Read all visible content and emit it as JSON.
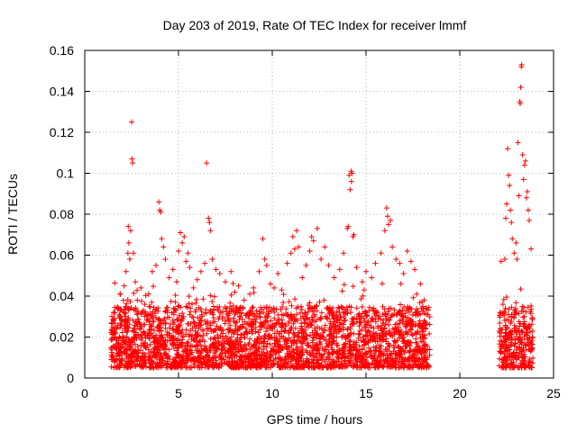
{
  "chart_data": {
    "type": "scatter",
    "title": "Day 203 of 2019, Rate Of TEC Index for receiver lmmf",
    "xlabel": "GPS time / hours",
    "ylabel": "ROTI / TECUs",
    "xlim": [
      0,
      25
    ],
    "ylim": [
      0,
      0.16
    ],
    "xticks": [
      "0",
      "5",
      "10",
      "15",
      "20",
      "25"
    ],
    "yticks": [
      "0",
      "0.02",
      "0.04",
      "0.06",
      "0.08",
      "0.1",
      "0.12",
      "0.14",
      "0.16"
    ],
    "grid": true,
    "marker": "plus",
    "color": "#ff0000",
    "coverage": [
      [
        1.4,
        18.4
      ],
      [
        22.1,
        23.9
      ]
    ],
    "series": [
      {
        "values": [
          [
            1.5,
            0.022
          ],
          [
            1.6,
            0.029
          ],
          [
            1.7,
            0.019
          ],
          [
            1.8,
            0.034
          ],
          [
            1.9,
            0.041
          ],
          [
            2.0,
            0.028
          ],
          [
            2.1,
            0.045
          ],
          [
            2.2,
            0.052
          ],
          [
            2.3,
            0.061
          ],
          [
            2.32,
            0.074
          ],
          [
            2.35,
            0.066
          ],
          [
            2.4,
            0.058
          ],
          [
            2.45,
            0.072
          ],
          [
            2.5,
            0.125
          ],
          [
            2.52,
            0.107
          ],
          [
            2.55,
            0.105
          ],
          [
            2.6,
            0.061
          ],
          [
            2.7,
            0.047
          ],
          [
            2.8,
            0.038
          ],
          [
            3.0,
            0.044
          ],
          [
            3.2,
            0.036
          ],
          [
            3.4,
            0.041
          ],
          [
            3.6,
            0.052
          ],
          [
            3.8,
            0.055
          ],
          [
            3.95,
            0.086
          ],
          [
            4.0,
            0.082
          ],
          [
            4.05,
            0.081
          ],
          [
            4.1,
            0.068
          ],
          [
            4.2,
            0.064
          ],
          [
            4.3,
            0.058
          ],
          [
            4.5,
            0.049
          ],
          [
            4.7,
            0.053
          ],
          [
            4.9,
            0.047
          ],
          [
            5.0,
            0.062
          ],
          [
            5.1,
            0.071
          ],
          [
            5.2,
            0.066
          ],
          [
            5.3,
            0.069
          ],
          [
            5.4,
            0.057
          ],
          [
            5.5,
            0.061
          ],
          [
            5.6,
            0.054
          ],
          [
            5.8,
            0.044
          ],
          [
            6.0,
            0.048
          ],
          [
            6.2,
            0.052
          ],
          [
            6.4,
            0.056
          ],
          [
            6.5,
            0.105
          ],
          [
            6.6,
            0.078
          ],
          [
            6.65,
            0.076
          ],
          [
            6.7,
            0.072
          ],
          [
            6.8,
            0.058
          ],
          [
            7.0,
            0.053
          ],
          [
            7.2,
            0.051
          ],
          [
            7.5,
            0.047
          ],
          [
            7.8,
            0.052
          ],
          [
            8.0,
            0.042
          ],
          [
            8.2,
            0.045
          ],
          [
            8.5,
            0.038
          ],
          [
            8.8,
            0.041
          ],
          [
            9.0,
            0.044
          ],
          [
            9.3,
            0.052
          ],
          [
            9.5,
            0.068
          ],
          [
            9.6,
            0.058
          ],
          [
            9.7,
            0.055
          ],
          [
            9.9,
            0.046
          ],
          [
            10.1,
            0.044
          ],
          [
            10.3,
            0.051
          ],
          [
            10.5,
            0.043
          ],
          [
            10.8,
            0.056
          ],
          [
            11.0,
            0.061
          ],
          [
            11.1,
            0.069
          ],
          [
            11.2,
            0.063
          ],
          [
            11.3,
            0.072
          ],
          [
            11.4,
            0.064
          ],
          [
            11.6,
            0.049
          ],
          [
            11.8,
            0.055
          ],
          [
            12.0,
            0.062
          ],
          [
            12.1,
            0.069
          ],
          [
            12.2,
            0.067
          ],
          [
            12.4,
            0.073
          ],
          [
            12.6,
            0.058
          ],
          [
            12.8,
            0.064
          ],
          [
            13.0,
            0.055
          ],
          [
            13.3,
            0.049
          ],
          [
            13.6,
            0.053
          ],
          [
            13.8,
            0.061
          ],
          [
            14.0,
            0.073
          ],
          [
            14.05,
            0.074
          ],
          [
            14.1,
            0.099
          ],
          [
            14.15,
            0.092
          ],
          [
            14.2,
            0.101
          ],
          [
            14.22,
            0.096
          ],
          [
            14.25,
            0.1
          ],
          [
            14.3,
            0.069
          ],
          [
            14.35,
            0.07
          ],
          [
            14.5,
            0.054
          ],
          [
            14.8,
            0.047
          ],
          [
            15.0,
            0.052
          ],
          [
            15.3,
            0.049
          ],
          [
            15.5,
            0.056
          ],
          [
            15.8,
            0.061
          ],
          [
            16.0,
            0.072
          ],
          [
            16.1,
            0.083
          ],
          [
            16.15,
            0.079
          ],
          [
            16.2,
            0.075
          ],
          [
            16.3,
            0.077
          ],
          [
            16.4,
            0.064
          ],
          [
            16.6,
            0.058
          ],
          [
            16.8,
            0.056
          ],
          [
            17.0,
            0.051
          ],
          [
            17.2,
            0.062
          ],
          [
            17.4,
            0.057
          ],
          [
            17.6,
            0.053
          ],
          [
            17.9,
            0.046
          ],
          [
            18.1,
            0.038
          ],
          [
            18.3,
            0.031
          ],
          [
            22.2,
            0.057
          ],
          [
            22.3,
            0.036
          ],
          [
            22.4,
            0.058
          ],
          [
            22.45,
            0.078
          ],
          [
            22.5,
            0.085
          ],
          [
            22.55,
            0.112
          ],
          [
            22.6,
            0.099
          ],
          [
            22.65,
            0.094
          ],
          [
            22.7,
            0.082
          ],
          [
            22.75,
            0.076
          ],
          [
            22.8,
            0.068
          ],
          [
            22.9,
            0.061
          ],
          [
            23.0,
            0.066
          ],
          [
            23.05,
            0.058
          ],
          [
            23.1,
            0.115
          ],
          [
            23.15,
            0.089
          ],
          [
            23.2,
            0.135
          ],
          [
            23.22,
            0.134
          ],
          [
            23.25,
            0.142
          ],
          [
            23.28,
            0.152
          ],
          [
            23.3,
            0.153
          ],
          [
            23.35,
            0.109
          ],
          [
            23.4,
            0.097
          ],
          [
            23.45,
            0.104
          ],
          [
            23.5,
            0.106
          ],
          [
            23.55,
            0.088
          ],
          [
            23.6,
            0.091
          ],
          [
            23.65,
            0.082
          ],
          [
            23.7,
            0.077
          ],
          [
            23.8,
            0.063
          ]
        ]
      }
    ]
  }
}
